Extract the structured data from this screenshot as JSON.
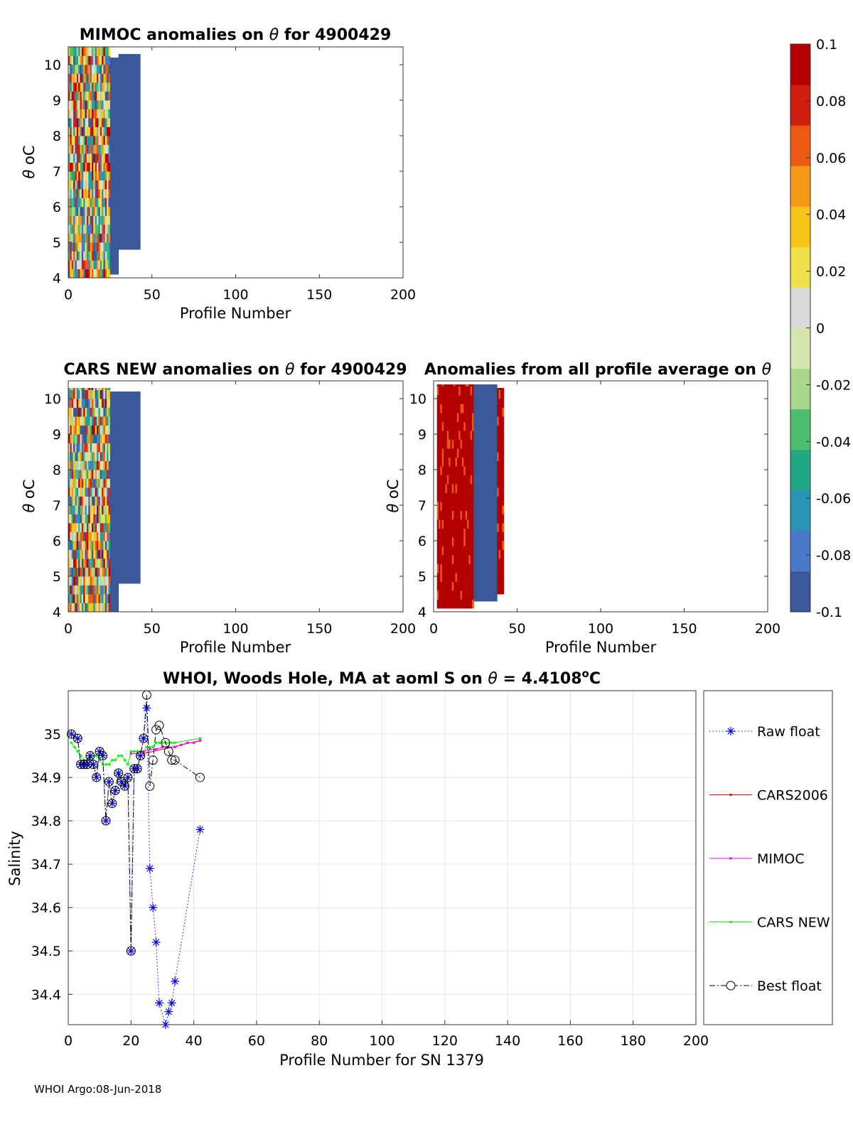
{
  "colors": {
    "background": "#ffffff",
    "raw_float": "#0000ff",
    "cars2006": "#ff0000",
    "mimoc": "#ff00ff",
    "cars_new": "#00ff00",
    "best_float": "#000000",
    "anomaly_low": "#3b5998",
    "anomaly_high": "#b30000"
  },
  "footer": {
    "text": "WHOI Argo:08-Jun-2018"
  },
  "chart_data": [
    {
      "id": "mimoc",
      "type": "heatmap",
      "title_prefix": "MIMOC anomalies on",
      "title_suffix": "for 4900429",
      "theta_symbol": "θ",
      "xlabel": "Profile Number",
      "ylabel_symbol": "θ",
      "ylabel_unit": "oC",
      "xlim": [
        0,
        200
      ],
      "ylim": [
        4,
        10.5
      ],
      "xticks": [
        "0",
        "50",
        "100",
        "150",
        "200"
      ],
      "yticks": [
        "4",
        "5",
        "6",
        "7",
        "8",
        "9",
        "10"
      ],
      "coverage": [
        {
          "x_from": 0,
          "x_to": 25,
          "theta_from": 4.0,
          "theta_to": 10.5,
          "pattern": "mixed"
        },
        {
          "x_from": 25,
          "x_to": 30,
          "theta_from": 4.1,
          "theta_to": 10.2,
          "pattern": "low"
        },
        {
          "x_from": 30,
          "x_to": 43,
          "theta_from": 4.8,
          "theta_to": 10.3,
          "pattern": "low"
        }
      ]
    },
    {
      "id": "cars_new",
      "type": "heatmap",
      "title_prefix": "CARS NEW anomalies on",
      "title_suffix": "for 4900429",
      "theta_symbol": "θ",
      "xlabel": "Profile Number",
      "ylabel_symbol": "θ",
      "ylabel_unit": "oC",
      "xlim": [
        0,
        200
      ],
      "ylim": [
        4,
        10.5
      ],
      "xticks": [
        "0",
        "50",
        "100",
        "150",
        "200"
      ],
      "yticks": [
        "4",
        "5",
        "6",
        "7",
        "8",
        "9",
        "10"
      ],
      "coverage": [
        {
          "x_from": 0,
          "x_to": 25,
          "theta_from": 4.0,
          "theta_to": 10.3,
          "pattern": "mixed"
        },
        {
          "x_from": 25,
          "x_to": 30,
          "theta_from": 4.0,
          "theta_to": 10.2,
          "pattern": "low"
        },
        {
          "x_from": 30,
          "x_to": 43,
          "theta_from": 4.8,
          "theta_to": 10.2,
          "pattern": "low"
        }
      ]
    },
    {
      "id": "all_profile_avg",
      "type": "heatmap",
      "title_prefix": "Anomalies from all profile average on",
      "title_suffix": "",
      "theta_symbol": "θ",
      "xlabel": "Profile Number",
      "ylabel_symbol": "θ",
      "ylabel_unit": "oC",
      "xlim": [
        0,
        200
      ],
      "ylim": [
        4,
        10.5
      ],
      "xticks": [
        "0",
        "50",
        "100",
        "150",
        "200"
      ],
      "yticks": [
        "4",
        "5",
        "6",
        "7",
        "8",
        "9",
        "10"
      ],
      "coverage": [
        {
          "x_from": 2,
          "x_to": 24,
          "theta_from": 4.1,
          "theta_to": 10.4,
          "pattern": "high"
        },
        {
          "x_from": 24,
          "x_to": 38,
          "theta_from": 4.3,
          "theta_to": 10.4,
          "pattern": "low"
        },
        {
          "x_from": 38,
          "x_to": 42,
          "theta_from": 4.5,
          "theta_to": 10.3,
          "pattern": "high"
        }
      ]
    },
    {
      "id": "colorbar",
      "type": "colorbar",
      "range": [
        -0.1,
        0.1
      ],
      "ticks": [
        "0.1",
        "0.08",
        "0.06",
        "0.04",
        "0.02",
        "0",
        "-0.02",
        "-0.04",
        "-0.06",
        "-0.08",
        "-0.1"
      ],
      "tick_values": [
        0.1,
        0.08,
        0.06,
        0.04,
        0.02,
        0,
        -0.02,
        -0.04,
        -0.06,
        -0.08,
        -0.1
      ],
      "colormap": [
        "#3b5998",
        "#4a78c8",
        "#2a93b8",
        "#22a884",
        "#4cbf6e",
        "#a8d88a",
        "#d6e6b0",
        "#d9d9d9",
        "#f0e04a",
        "#f5c518",
        "#f29a18",
        "#ea5a14",
        "#cf1e10",
        "#b30000"
      ]
    },
    {
      "id": "salinity",
      "type": "line",
      "title_prefix": "WHOI, Woods Hole, MA at aoml S on",
      "theta_symbol": "θ",
      "title_value": " = 4.4108",
      "title_sup": "o",
      "title_unit": "C",
      "xlabel": "Profile Number for SN 1379",
      "ylabel": "Salinity",
      "xlim": [
        0,
        200
      ],
      "ylim": [
        34.33,
        35.1
      ],
      "xticks": [
        "0",
        "20",
        "40",
        "60",
        "80",
        "100",
        "120",
        "140",
        "160",
        "180",
        "200"
      ],
      "yticks": [
        "34.4",
        "34.5",
        "34.6",
        "34.7",
        "34.8",
        "34.9",
        "35"
      ],
      "grid": true,
      "legend_position": "outside-right",
      "series": [
        {
          "name": "Raw float",
          "style": "dotted-star",
          "x": [
            1,
            3,
            4,
            5,
            6,
            7,
            8,
            9,
            10,
            11,
            12,
            13,
            14,
            15,
            16,
            17,
            18,
            19,
            20,
            21,
            22,
            23,
            24,
            25,
            26,
            27,
            28,
            29,
            31,
            32,
            33,
            34,
            42
          ],
          "y": [
            35.0,
            34.99,
            34.93,
            34.93,
            34.93,
            34.95,
            34.93,
            34.9,
            34.96,
            34.95,
            34.8,
            34.89,
            34.84,
            34.87,
            34.91,
            34.89,
            34.88,
            34.9,
            34.5,
            34.92,
            34.92,
            34.95,
            34.99,
            35.06,
            34.69,
            34.6,
            34.52,
            34.38,
            34.33,
            34.36,
            34.38,
            34.43,
            34.78
          ]
        },
        {
          "name": "CARS2006",
          "style": "solid-dot",
          "x": [
            24,
            42
          ],
          "y": [
            34.955,
            34.985
          ]
        },
        {
          "name": "MIMOC",
          "style": "solid-dot",
          "x": [
            20,
            22,
            24,
            26,
            28,
            30,
            32,
            34,
            36,
            38,
            40,
            42
          ],
          "y": [
            34.955,
            34.955,
            34.96,
            34.965,
            34.965,
            34.97,
            34.97,
            34.97,
            34.975,
            34.98,
            34.98,
            34.985
          ]
        },
        {
          "name": "CARS NEW",
          "style": "solid-dot",
          "x": [
            1,
            2,
            3,
            4,
            5,
            6,
            7,
            8,
            9,
            10,
            11,
            12,
            13,
            14,
            15,
            16,
            17,
            18,
            19,
            20,
            21,
            22,
            23,
            24,
            25,
            26,
            27,
            28,
            29,
            30,
            31,
            32,
            33,
            34,
            42
          ],
          "y": [
            34.98,
            34.97,
            34.96,
            34.95,
            34.94,
            34.94,
            34.95,
            34.95,
            34.95,
            34.94,
            34.93,
            34.93,
            34.93,
            34.94,
            34.94,
            34.95,
            34.95,
            34.94,
            34.93,
            34.96,
            34.96,
            34.96,
            34.96,
            34.96,
            34.97,
            34.97,
            34.97,
            34.98,
            34.98,
            34.98,
            34.98,
            34.98,
            34.98,
            34.98,
            34.99
          ]
        },
        {
          "name": "Best float",
          "style": "dashdot-circle",
          "x": [
            1,
            3,
            4,
            5,
            6,
            7,
            8,
            9,
            10,
            11,
            12,
            13,
            14,
            15,
            16,
            17,
            18,
            19,
            20,
            21,
            22,
            23,
            24,
            25,
            26,
            27,
            28,
            29,
            31,
            32,
            33,
            34,
            42
          ],
          "y": [
            35.0,
            34.99,
            34.93,
            34.93,
            34.93,
            34.95,
            34.93,
            34.9,
            34.96,
            34.95,
            34.8,
            34.89,
            34.84,
            34.87,
            34.91,
            34.89,
            34.88,
            34.9,
            34.5,
            34.92,
            34.92,
            34.95,
            34.99,
            35.09,
            34.88,
            34.94,
            35.01,
            35.02,
            34.98,
            34.96,
            34.94,
            34.94,
            34.9
          ]
        }
      ]
    }
  ]
}
